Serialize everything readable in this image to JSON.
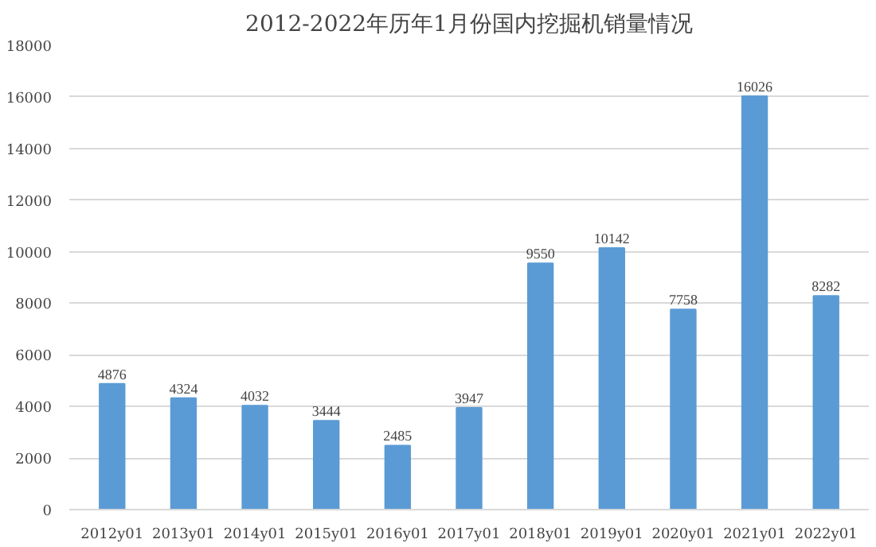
{
  "chart_data": {
    "type": "bar",
    "title": "2012-2022年历年1月份国内挖掘机销量情况",
    "categories": [
      "2012y01",
      "2013y01",
      "2014y01",
      "2015y01",
      "2016y01",
      "2017y01",
      "2018y01",
      "2019y01",
      "2020y01",
      "2021y01",
      "2022y01"
    ],
    "values": [
      4876,
      4324,
      4032,
      3444,
      2485,
      3947,
      9550,
      10142,
      7758,
      16026,
      8282
    ],
    "color": "#5b9bd5",
    "ylim": [
      0,
      18000
    ],
    "yticks": [
      0,
      2000,
      4000,
      6000,
      8000,
      10000,
      12000,
      14000,
      16000,
      18000
    ],
    "grid": "y",
    "data_labels": true
  }
}
